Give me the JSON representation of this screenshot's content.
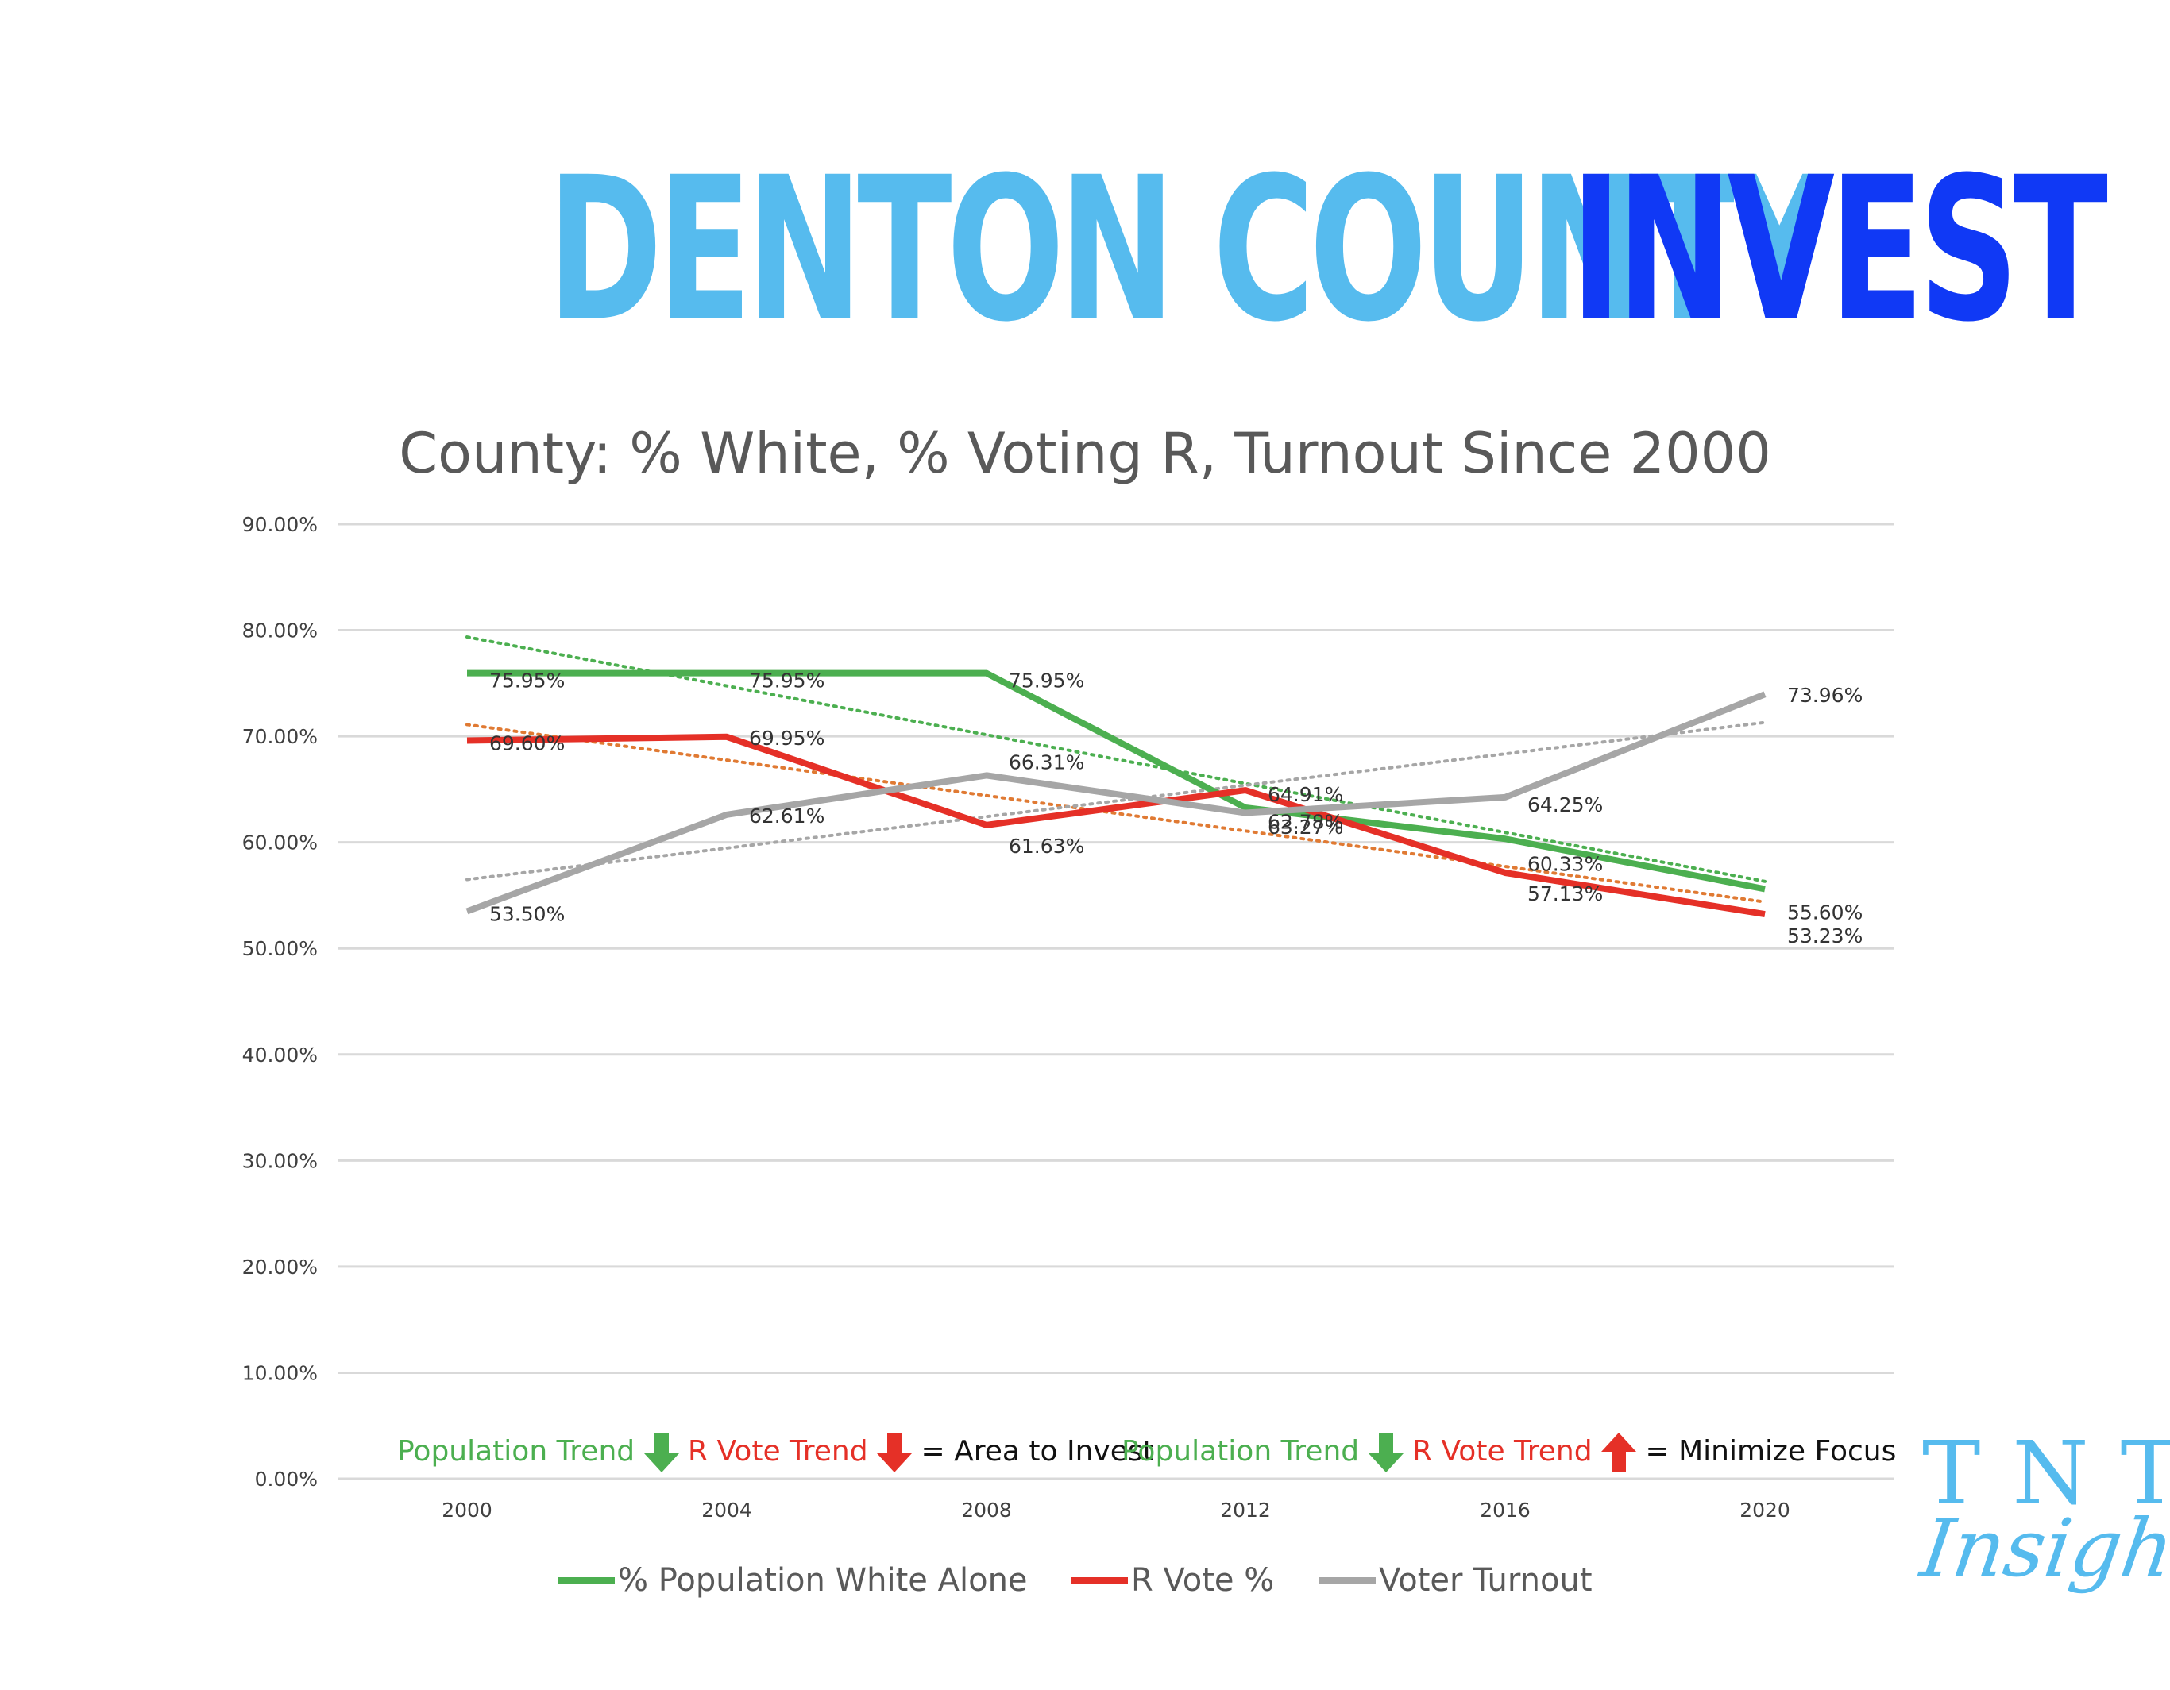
{
  "header": {
    "word1": "DENTON COUNTY",
    "word2": "INVEST",
    "color1": "#56bbee",
    "color2": "#1039f5"
  },
  "logo": {
    "line1": "TNT",
    "line2": "Insights"
  },
  "notes": {
    "left": {
      "population": "Population Trend",
      "population_arrow": "down",
      "rvote": "R Vote Trend",
      "rvote_arrow": "down",
      "result": "= Area to Invest"
    },
    "right": {
      "population": "Population Trend",
      "population_arrow": "down",
      "rvote": "R Vote Trend",
      "rvote_arrow": "up",
      "result": "= Minimize Focus"
    }
  },
  "chart_data": {
    "type": "line",
    "title": "County: % White, % Voting R, Turnout Since 2000",
    "categories": [
      "2000",
      "2004",
      "2008",
      "2012",
      "2016",
      "2020"
    ],
    "ylim": [
      0,
      90
    ],
    "yticks": [
      "0.00%",
      "10.00%",
      "20.00%",
      "30.00%",
      "40.00%",
      "50.00%",
      "60.00%",
      "70.00%",
      "80.00%",
      "90.00%"
    ],
    "grid": true,
    "legend_position": "bottom",
    "series": [
      {
        "name": "% Population White Alone",
        "color": "#4caf50",
        "values": [
          75.95,
          75.95,
          75.95,
          63.27,
          60.33,
          55.6
        ],
        "labels": [
          "75.95%",
          "75.95%",
          "75.95%",
          "63.27%",
          "60.33%",
          "55.60%"
        ],
        "trendline": true
      },
      {
        "name": "R Vote %",
        "color": "#e53027",
        "values": [
          69.6,
          69.95,
          61.63,
          64.91,
          57.13,
          53.23
        ],
        "labels": [
          "69.60%",
          "69.95%",
          "61.63%",
          "64.91%",
          "57.13%",
          "53.23%"
        ],
        "trendline": true
      },
      {
        "name": "Voter Turnout",
        "color": "#a6a6a6",
        "values": [
          53.5,
          62.61,
          66.31,
          62.78,
          64.25,
          73.96
        ],
        "labels": [
          "53.50%",
          "62.61%",
          "66.31%",
          "62.78%",
          "64.25%",
          "73.96%"
        ],
        "trendline": true
      }
    ]
  }
}
